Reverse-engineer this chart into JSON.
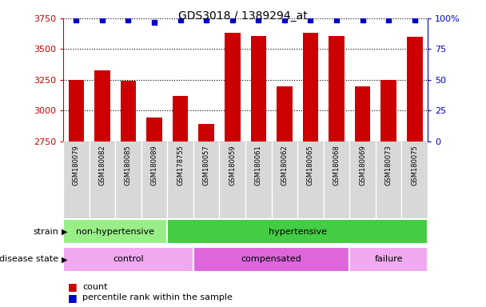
{
  "title": "GDS3018 / 1389294_at",
  "samples": [
    "GSM180079",
    "GSM180082",
    "GSM180085",
    "GSM180089",
    "GSM178755",
    "GSM180057",
    "GSM180059",
    "GSM180061",
    "GSM180062",
    "GSM180065",
    "GSM180068",
    "GSM180069",
    "GSM180073",
    "GSM180075"
  ],
  "counts": [
    3248,
    3325,
    3242,
    2942,
    3118,
    2888,
    3630,
    3608,
    3198,
    3632,
    3608,
    3198,
    3248,
    3598
  ],
  "percentiles": [
    99,
    99,
    99,
    97,
    99,
    99,
    99,
    99,
    99,
    99,
    99,
    99,
    99,
    99
  ],
  "ylim_left": [
    2750,
    3750
  ],
  "ylim_right": [
    0,
    100
  ],
  "yticks_left": [
    2750,
    3000,
    3250,
    3500,
    3750
  ],
  "yticks_right": [
    0,
    25,
    50,
    75,
    100
  ],
  "bar_color": "#cc0000",
  "dot_color": "#0000cc",
  "strain_groups": [
    {
      "label": "non-hypertensive",
      "start": 0,
      "end": 4,
      "color": "#99ee88"
    },
    {
      "label": "hypertensive",
      "start": 4,
      "end": 14,
      "color": "#44cc44"
    }
  ],
  "disease_groups": [
    {
      "label": "control",
      "start": 0,
      "end": 5,
      "color": "#f0a8f0"
    },
    {
      "label": "compensated",
      "start": 5,
      "end": 11,
      "color": "#dd66dd"
    },
    {
      "label": "failure",
      "start": 11,
      "end": 14,
      "color": "#f0a8f0"
    }
  ],
  "legend_count_label": "count",
  "legend_pct_label": "percentile rank within the sample",
  "strain_label": "strain",
  "disease_label": "disease state"
}
